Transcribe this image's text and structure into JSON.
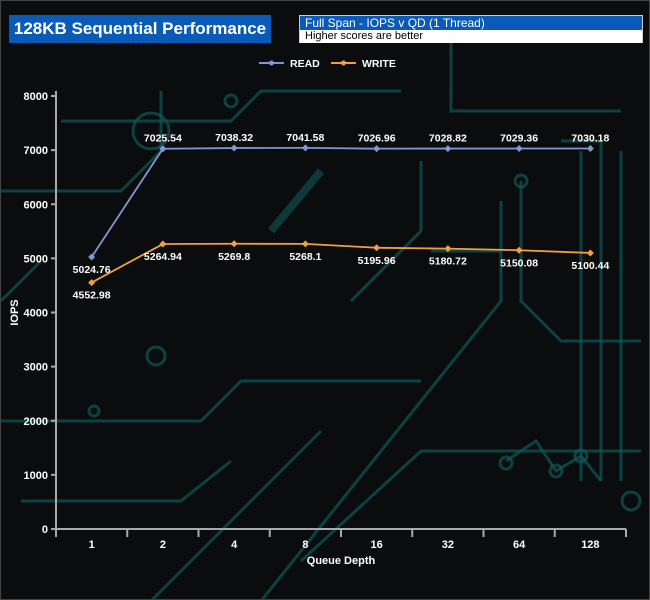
{
  "header": {
    "title": "128KB Sequential Performance",
    "subtitle": "Full Span - IOPS v QD (1 Thread)",
    "note": "Higher scores are better"
  },
  "colors": {
    "read": "#7f97d6",
    "write": "#f0a040",
    "accent": "#0a5bb8",
    "background": "#0a0c0d",
    "circuit": "#0e5a5a"
  },
  "chart_data": {
    "type": "line",
    "categories": [
      "1",
      "2",
      "4",
      "8",
      "16",
      "32",
      "64",
      "128"
    ],
    "xlabel": "Queue Depth",
    "ylabel": "IOPS",
    "ylim": [
      0,
      8000
    ],
    "yticks": [
      0,
      1000,
      2000,
      3000,
      4000,
      5000,
      6000,
      7000,
      8000
    ],
    "legend": "top-center",
    "grid": false,
    "series": [
      {
        "name": "READ",
        "values": [
          5024.76,
          7025.54,
          7038.32,
          7041.58,
          7026.96,
          7028.82,
          7029.36,
          7030.18
        ],
        "labels": [
          "5024.76",
          "7025.54",
          "7038.32",
          "7041.58",
          "7026.96",
          "7028.82",
          "7029.36",
          "7030.18"
        ]
      },
      {
        "name": "WRITE",
        "values": [
          4552.98,
          5264.94,
          5269.8,
          5268.1,
          5195.96,
          5180.72,
          5150.08,
          5100.44
        ],
        "labels": [
          "4552.98",
          "5264.94",
          "5269.8",
          "5268.1",
          "5195.96",
          "5180.72",
          "5150.08",
          "5100.44"
        ]
      }
    ]
  }
}
